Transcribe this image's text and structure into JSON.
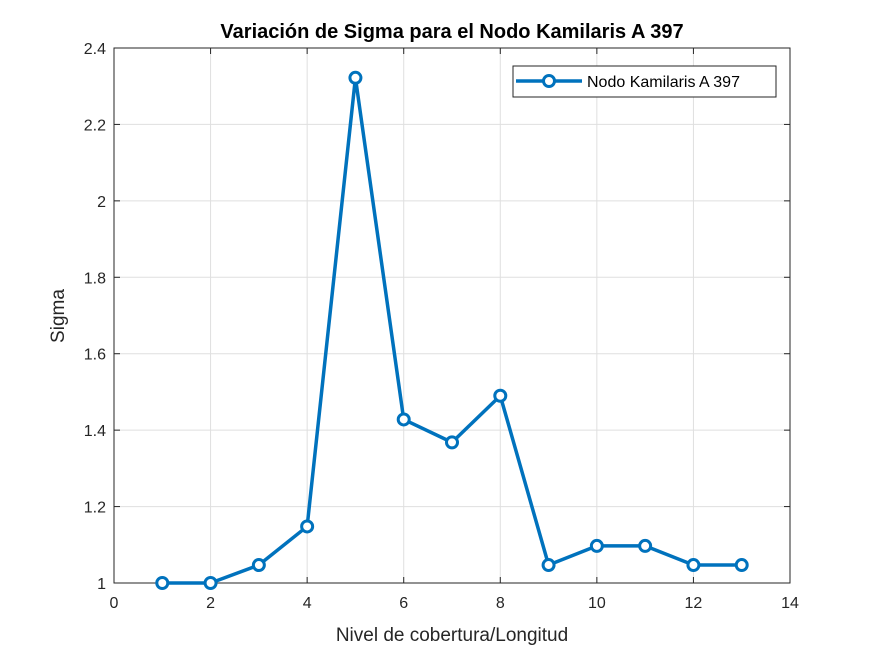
{
  "chart_data": {
    "type": "line",
    "title": "Variación de Sigma para el Nodo Kamilaris A 397",
    "xlabel": "Nivel de cobertura/Longitud",
    "ylabel": "Sigma",
    "xlim": [
      0,
      14
    ],
    "ylim": [
      1,
      2.4
    ],
    "xticks": [
      0,
      2,
      4,
      6,
      8,
      10,
      12,
      14
    ],
    "yticks": [
      1,
      1.2,
      1.4,
      1.6,
      1.8,
      2,
      2.2,
      2.4
    ],
    "xtick_labels": [
      "0",
      "2",
      "4",
      "6",
      "8",
      "10",
      "12",
      "14"
    ],
    "ytick_labels": [
      "1",
      "1.2",
      "1.4",
      "1.6",
      "1.8",
      "2",
      "2.2",
      "2.4"
    ],
    "grid": true,
    "legend_position": "top-right",
    "series": [
      {
        "name": "Nodo Kamilaris A 397",
        "color": "#0072BD",
        "marker": "circle",
        "x": [
          1,
          2,
          3,
          4,
          5,
          6,
          7,
          8,
          9,
          10,
          11,
          12,
          13
        ],
        "y": [
          1.0,
          1.0,
          1.047,
          1.148,
          2.322,
          1.428,
          1.368,
          1.49,
          1.047,
          1.097,
          1.097,
          1.047,
          1.047
        ]
      }
    ]
  }
}
